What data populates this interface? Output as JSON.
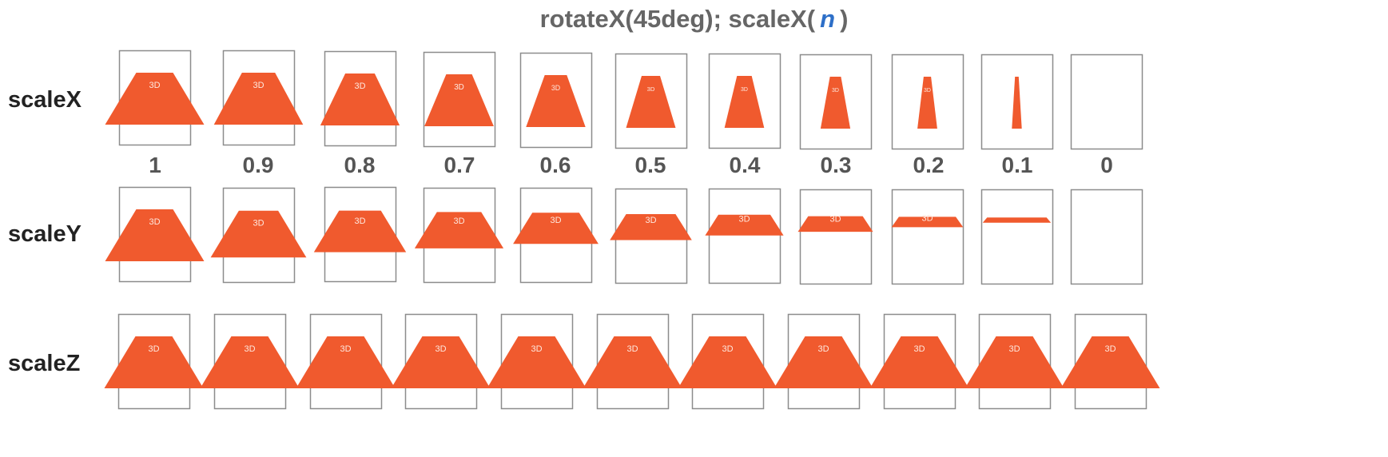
{
  "title": {
    "prefix": "rotateX(45deg); scaleX(",
    "variable": "n",
    "suffix": ")"
  },
  "face_label": "3D",
  "colors": {
    "shape_fill": "#f05a2e",
    "box_stroke": "#8c8c8c",
    "title_text": "#666666",
    "variable_text": "#2d6fc8",
    "row_label_text": "#222222",
    "value_text": "#555555"
  },
  "values": [
    "1",
    "0.9",
    "0.8",
    "0.7",
    "0.6",
    "0.5",
    "0.4",
    "0.3",
    "0.2",
    "0.1",
    "0"
  ],
  "rows": [
    {
      "label": "scaleX",
      "scales": [
        1,
        0.9,
        0.8,
        0.7,
        0.6,
        0.5,
        0.4,
        0.3,
        0.2,
        0.1,
        0
      ]
    },
    {
      "label": "scaleY",
      "scales": [
        1,
        0.9,
        0.8,
        0.7,
        0.6,
        0.5,
        0.4,
        0.3,
        0.2,
        0.1,
        0
      ]
    },
    {
      "label": "scaleZ",
      "scales": [
        1,
        1,
        1,
        1,
        1,
        1,
        1,
        1,
        1,
        1,
        1
      ]
    }
  ]
}
